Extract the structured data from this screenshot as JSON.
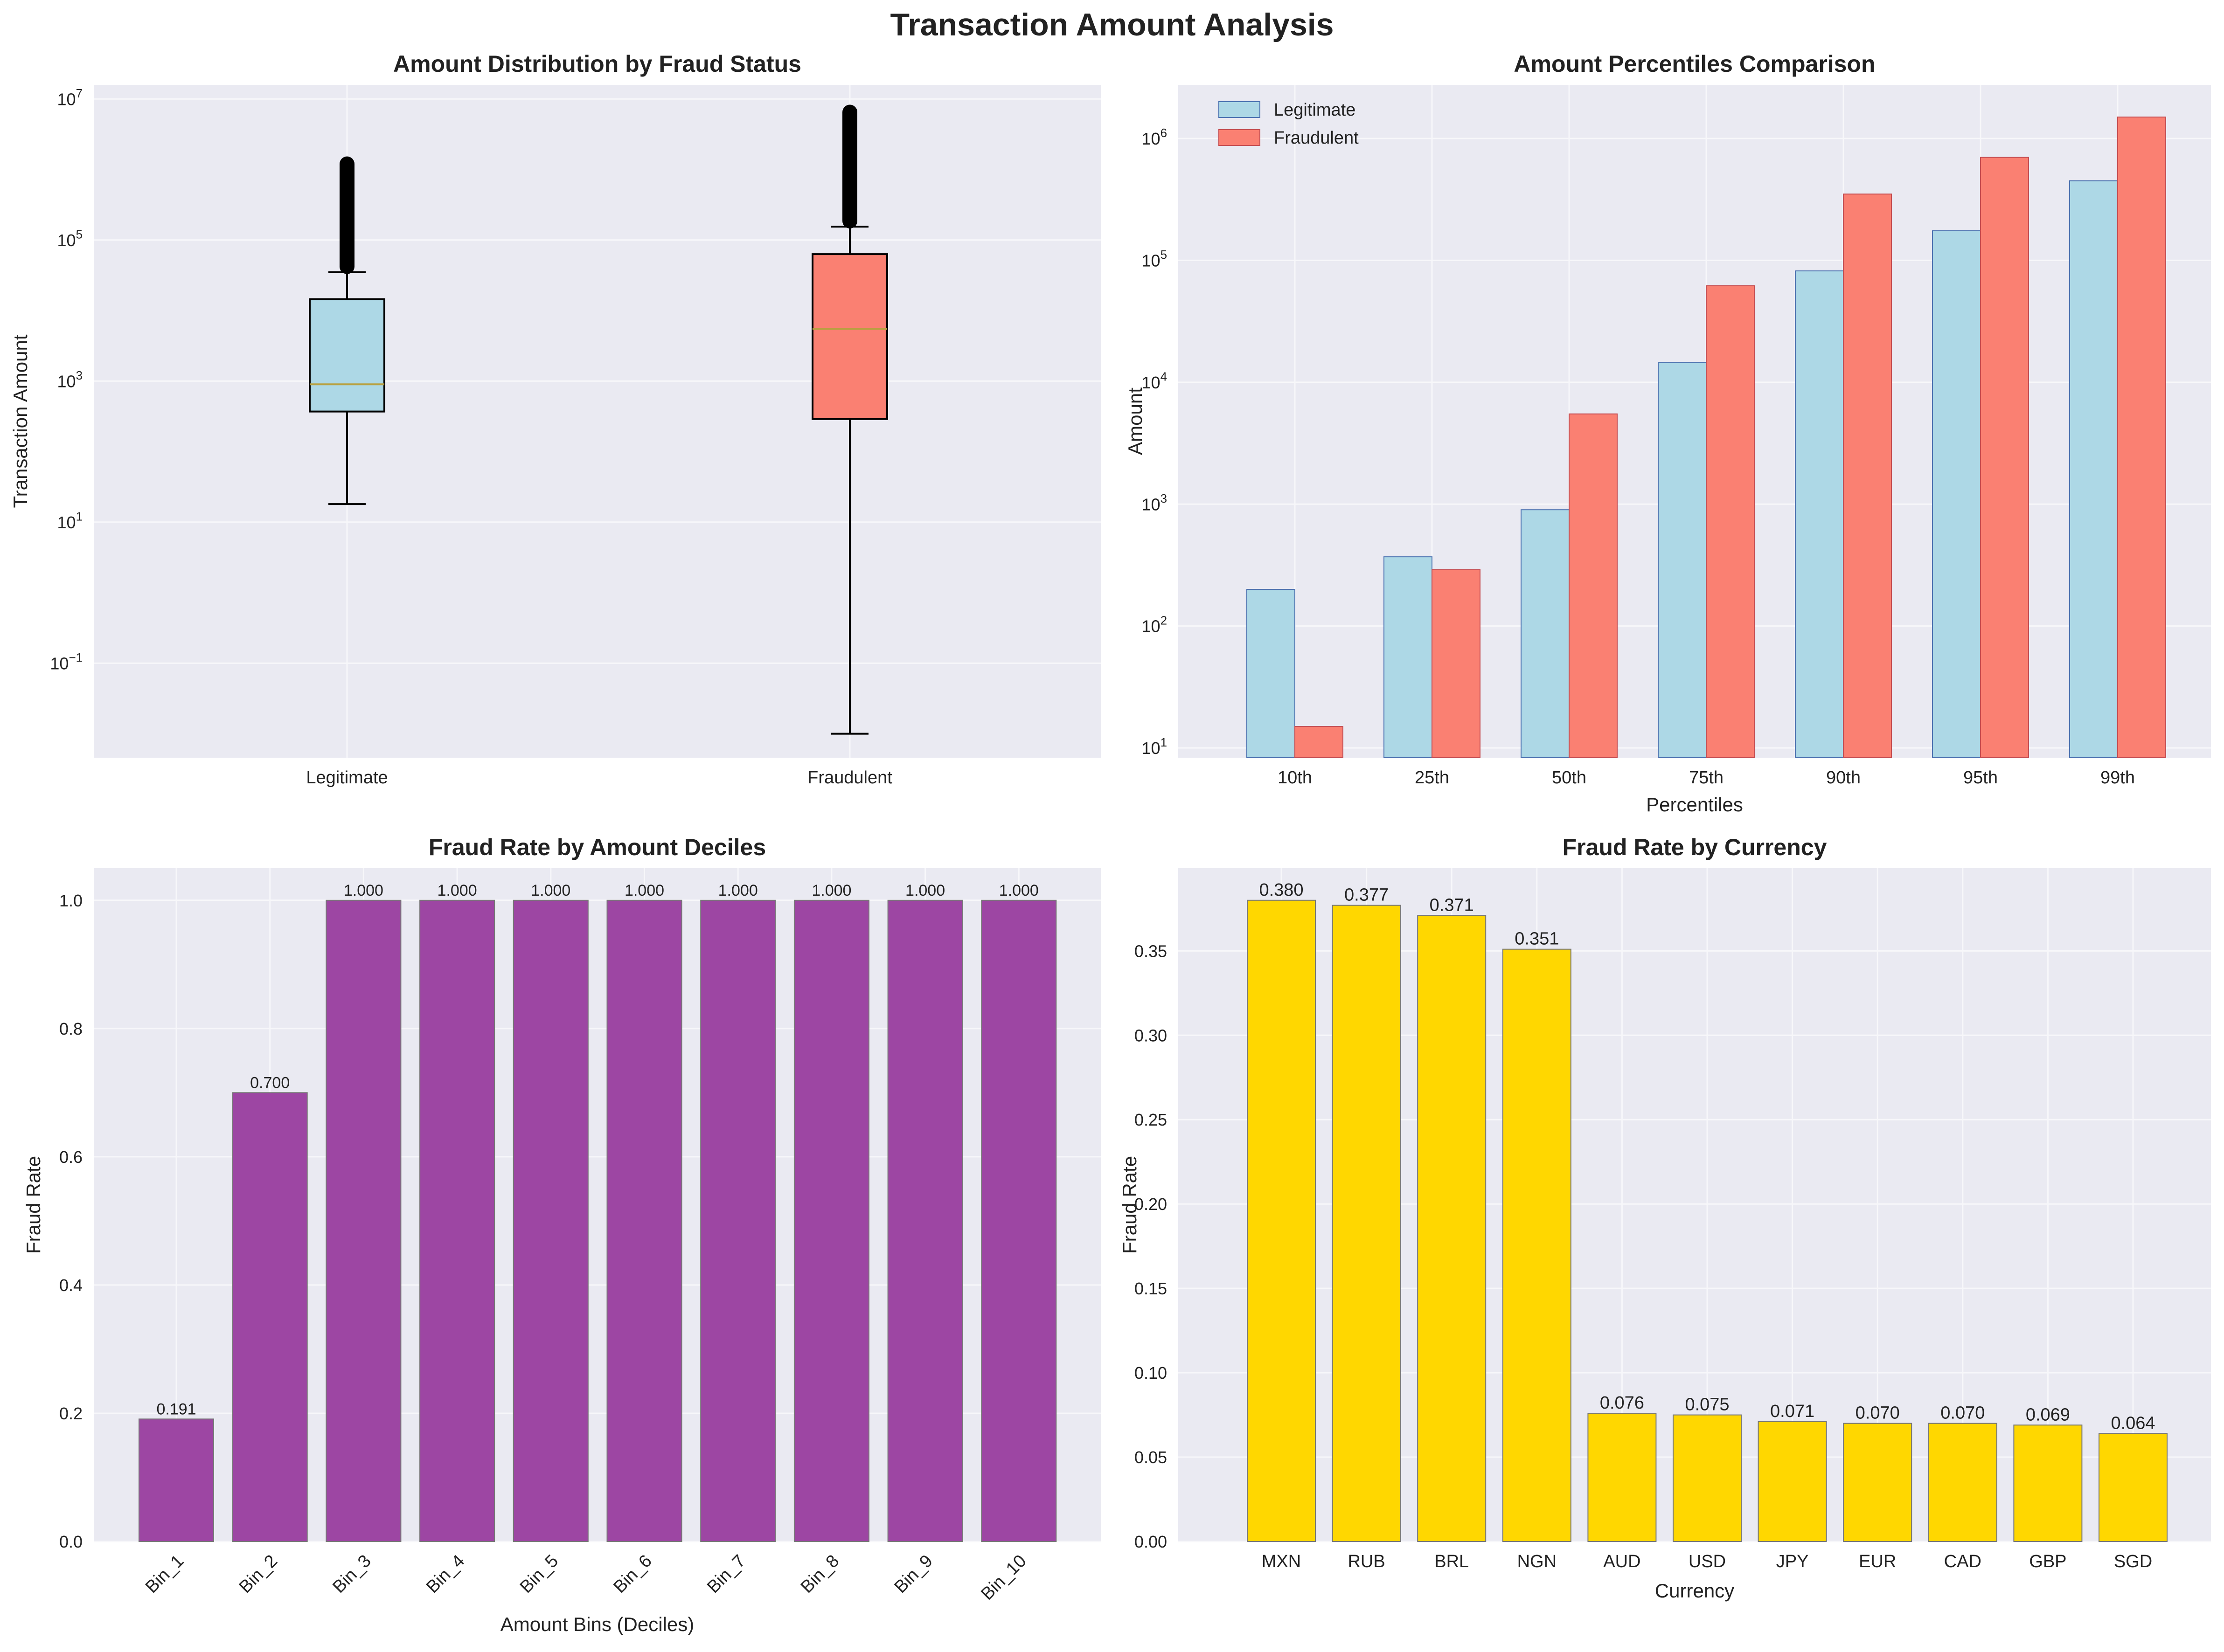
{
  "suptitle": "Transaction Amount Analysis",
  "colors": {
    "plot_bg": "#EAEAF2",
    "grid": "#F7F7FA",
    "light_blue": "#ADD8E6",
    "salmon": "#FA8072",
    "purple": "#9D46A3",
    "gold": "#FFD700",
    "median": "#B8A040",
    "edge_blue": "#4C72B0",
    "edge_red": "#C44E52"
  },
  "chart_data": [
    {
      "type": "box",
      "title": "Amount Distribution by Fraud Status",
      "xlabel": "",
      "ylabel": "Transaction Amount",
      "yscale": "log",
      "y_ticks": [
        "10^-1",
        "10^1",
        "10^3",
        "10^5",
        "10^7"
      ],
      "categories": [
        "Legitimate",
        "Fraudulent"
      ],
      "boxes": [
        {
          "name": "Legitimate",
          "whisker_low": 18,
          "q1": 370,
          "median": 900,
          "q3": 14500,
          "whisker_high": 35000,
          "outlier_max": 1200000,
          "color": "light_blue"
        },
        {
          "name": "Fraudulent",
          "whisker_low": 0.01,
          "q1": 290,
          "median": 5500,
          "q3": 63000,
          "whisker_high": 155000,
          "outlier_max": 6500000,
          "color": "salmon"
        }
      ],
      "grid": true
    },
    {
      "type": "bar",
      "title": "Amount Percentiles Comparison",
      "xlabel": "Percentiles",
      "ylabel": "Amount",
      "yscale": "log",
      "y_ticks": [
        "10^1",
        "10^2",
        "10^3",
        "10^4",
        "10^5",
        "10^6"
      ],
      "categories": [
        "10th",
        "25th",
        "50th",
        "75th",
        "90th",
        "95th",
        "99th"
      ],
      "series": [
        {
          "name": "Legitimate",
          "values": [
            200,
            370,
            900,
            14500,
            82000,
            175000,
            450000
          ],
          "color": "light_blue"
        },
        {
          "name": "Fraudulent",
          "values": [
            15,
            290,
            5500,
            62000,
            350000,
            700000,
            1500000
          ],
          "color": "salmon"
        }
      ],
      "legend": "top-left",
      "grid": true
    },
    {
      "type": "bar",
      "title": "Fraud Rate by Amount Deciles",
      "xlabel": "Amount Bins (Deciles)",
      "ylabel": "Fraud Rate",
      "ylim": [
        0,
        1.05
      ],
      "y_ticks": [
        "0.0",
        "0.2",
        "0.4",
        "0.6",
        "0.8",
        "1.0"
      ],
      "categories": [
        "Bin_1",
        "Bin_2",
        "Bin_3",
        "Bin_4",
        "Bin_5",
        "Bin_6",
        "Bin_7",
        "Bin_8",
        "Bin_9",
        "Bin_10"
      ],
      "values": [
        0.191,
        0.7,
        1.0,
        1.0,
        1.0,
        1.0,
        1.0,
        1.0,
        1.0,
        1.0
      ],
      "value_labels": [
        "0.191",
        "0.700",
        "1.000",
        "1.000",
        "1.000",
        "1.000",
        "1.000",
        "1.000",
        "1.000",
        "1.000"
      ],
      "color": "purple",
      "grid": true
    },
    {
      "type": "bar",
      "title": "Fraud Rate by Currency",
      "xlabel": "Currency",
      "ylabel": "Fraud Rate",
      "ylim": [
        0,
        0.399
      ],
      "y_ticks": [
        "0.00",
        "0.05",
        "0.10",
        "0.15",
        "0.20",
        "0.25",
        "0.30",
        "0.35"
      ],
      "categories": [
        "MXN",
        "RUB",
        "BRL",
        "NGN",
        "AUD",
        "USD",
        "JPY",
        "EUR",
        "CAD",
        "GBP",
        "SGD"
      ],
      "values": [
        0.38,
        0.377,
        0.371,
        0.351,
        0.076,
        0.075,
        0.071,
        0.07,
        0.07,
        0.069,
        0.064
      ],
      "value_labels": [
        "0.380",
        "0.377",
        "0.371",
        "0.351",
        "0.076",
        "0.075",
        "0.071",
        "0.070",
        "0.070",
        "0.069",
        "0.064"
      ],
      "color": "gold",
      "grid": true
    }
  ]
}
